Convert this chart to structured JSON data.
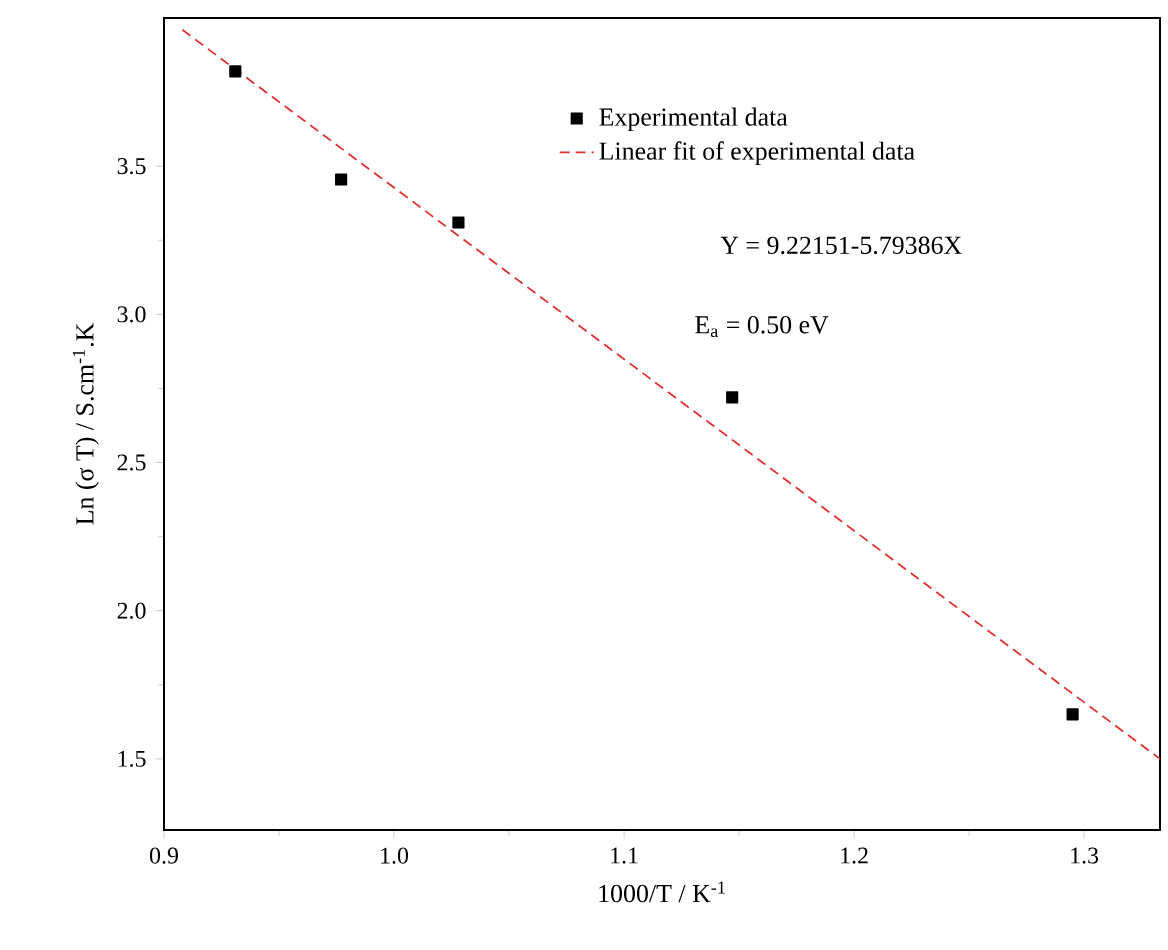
{
  "chart_data": {
    "type": "scatter",
    "xlabel": "1000/T / K$^{-1}$",
    "ylabel": "Ln (σ T) / S.cm$^{-1}$.K",
    "xlim": [
      0.9,
      1.333
    ],
    "ylim": [
      1.26,
      4.0
    ],
    "xticks": [
      0.9,
      {
        "value": 1.0,
        "label": "1.0"
      },
      1.1,
      1.2,
      1.3
    ],
    "yticks": [
      1.5,
      {
        "value": 2.0,
        "label": "2.0"
      },
      2.5,
      {
        "value": 3.0,
        "label": "3.0"
      },
      3.5
    ],
    "legend": "top right",
    "grid": false,
    "series": [
      {
        "name": "Experimental data",
        "color": "#000000",
        "marker": "square",
        "x": [
          0.931,
          0.977,
          1.028,
          1.147,
          1.295
        ],
        "values": [
          3.82,
          3.455,
          3.31,
          2.72,
          1.65
        ]
      },
      {
        "name": "Linear fit of experimental data",
        "type": "line",
        "color": "#e03030",
        "line_style": "dashed",
        "marker": "none",
        "x": [
          0.908,
          1.333
        ],
        "values": [
          3.96,
          1.5
        ]
      }
    ],
    "annotations": [
      "Y = 9.22151-5.79386X",
      "E$_{a}$ = 0.50 eV"
    ]
  }
}
